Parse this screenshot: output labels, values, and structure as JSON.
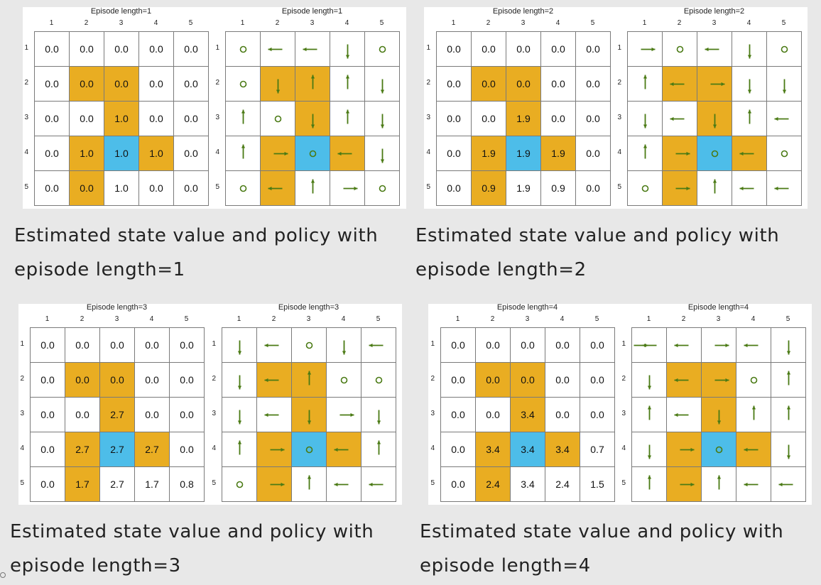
{
  "colors": {
    "forbidden": "#e9ad22",
    "target": "#4dbde9",
    "arrow": "#4a7a14",
    "background": "#e8e8e8"
  },
  "col_labels": [
    "1",
    "2",
    "3",
    "4",
    "5"
  ],
  "row_labels": [
    "1",
    "2",
    "3",
    "4",
    "5"
  ],
  "forbidden_cells": [
    [
      1,
      1
    ],
    [
      1,
      2
    ],
    [
      2,
      2
    ],
    [
      3,
      1
    ],
    [
      3,
      3
    ],
    [
      4,
      1
    ]
  ],
  "target_cell": [
    3,
    2
  ],
  "panels": [
    {
      "value_title": "Episode length=1",
      "policy_title": "Episode length=1",
      "caption_line1": "Estimated state value and policy with",
      "caption_line2": "episode length=1",
      "values": [
        [
          "0.0",
          "0.0",
          "0.0",
          "0.0",
          "0.0"
        ],
        [
          "0.0",
          "0.0",
          "0.0",
          "0.0",
          "0.0"
        ],
        [
          "0.0",
          "0.0",
          "1.0",
          "0.0",
          "0.0"
        ],
        [
          "0.0",
          "1.0",
          "1.0",
          "1.0",
          "0.0"
        ],
        [
          "0.0",
          "0.0",
          "1.0",
          "0.0",
          "0.0"
        ]
      ],
      "policy": [
        [
          "o",
          "l",
          "l",
          "d",
          "o"
        ],
        [
          "o",
          "d",
          "u",
          "u",
          "d"
        ],
        [
          "u",
          "o",
          "d",
          "u",
          "d"
        ],
        [
          "u",
          "r",
          "o",
          "l",
          "d"
        ],
        [
          "o",
          "l",
          "u",
          "r",
          "o"
        ]
      ]
    },
    {
      "value_title": "Episode length=2",
      "policy_title": "Episode length=2",
      "caption_line1": "Estimated state value and policy with",
      "caption_line2": "episode length=2",
      "values": [
        [
          "0.0",
          "0.0",
          "0.0",
          "0.0",
          "0.0"
        ],
        [
          "0.0",
          "0.0",
          "0.0",
          "0.0",
          "0.0"
        ],
        [
          "0.0",
          "0.0",
          "1.9",
          "0.0",
          "0.0"
        ],
        [
          "0.0",
          "1.9",
          "1.9",
          "1.9",
          "0.0"
        ],
        [
          "0.0",
          "0.9",
          "1.9",
          "0.9",
          "0.0"
        ]
      ],
      "policy": [
        [
          "r",
          "o",
          "l",
          "d",
          "o"
        ],
        [
          "u",
          "l",
          "r",
          "d",
          "d"
        ],
        [
          "d",
          "l",
          "d",
          "u",
          "l"
        ],
        [
          "u",
          "r",
          "o",
          "l",
          "o"
        ],
        [
          "o",
          "r",
          "u",
          "l",
          "l"
        ]
      ]
    },
    {
      "value_title": "Episode length=3",
      "policy_title": "Episode length=3",
      "caption_line1": "Estimated state value and policy with",
      "caption_line2": "episode length=3",
      "values": [
        [
          "0.0",
          "0.0",
          "0.0",
          "0.0",
          "0.0"
        ],
        [
          "0.0",
          "0.0",
          "0.0",
          "0.0",
          "0.0"
        ],
        [
          "0.0",
          "0.0",
          "2.7",
          "0.0",
          "0.0"
        ],
        [
          "0.0",
          "2.7",
          "2.7",
          "2.7",
          "0.0"
        ],
        [
          "0.0",
          "1.7",
          "2.7",
          "1.7",
          "0.8"
        ]
      ],
      "policy": [
        [
          "d",
          "l",
          "o",
          "d",
          "l"
        ],
        [
          "d",
          "l",
          "u",
          "o",
          "o"
        ],
        [
          "d",
          "l",
          "d",
          "r",
          "d"
        ],
        [
          "u",
          "r",
          "o",
          "l",
          "u"
        ],
        [
          "o",
          "r",
          "u",
          "l",
          "l"
        ]
      ]
    },
    {
      "value_title": "Episode length=4",
      "policy_title": "Episode length=4",
      "caption_line1": "Estimated state value and policy with",
      "caption_line2": "episode length=4",
      "values": [
        [
          "0.0",
          "0.0",
          "0.0",
          "0.0",
          "0.0"
        ],
        [
          "0.0",
          "0.0",
          "0.0",
          "0.0",
          "0.0"
        ],
        [
          "0.0",
          "0.0",
          "3.4",
          "0.0",
          "0.0"
        ],
        [
          "0.0",
          "3.4",
          "3.4",
          "3.4",
          "0.7"
        ],
        [
          "0.0",
          "2.4",
          "3.4",
          "2.4",
          "1.5"
        ]
      ],
      "policy": [
        [
          "rl",
          "l",
          "r",
          "l",
          "d"
        ],
        [
          "d",
          "l",
          "r",
          "o",
          "u"
        ],
        [
          "u",
          "l",
          "d",
          "u",
          "u"
        ],
        [
          "d",
          "r",
          "o",
          "l",
          "d"
        ],
        [
          "u",
          "r",
          "u",
          "l",
          "l"
        ]
      ]
    }
  ]
}
